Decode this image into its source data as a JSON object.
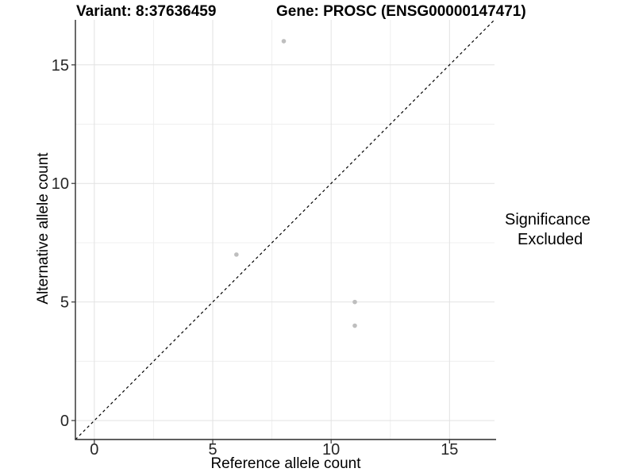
{
  "figure": {
    "title_left": "Variant: 8:37636459",
    "title_right": "Gene: PROSC (ENSG00000147471)",
    "background": "#ffffff"
  },
  "chart_data": {
    "type": "scatter",
    "title": "Variant: 8:37636459 — Gene: PROSC (ENSG00000147471)",
    "xlabel": "Reference allele count",
    "ylabel": "Alternative allele count",
    "xlim": [
      -0.8,
      16.9
    ],
    "ylim": [
      -0.8,
      16.9
    ],
    "x_ticks": [
      0,
      5,
      10,
      15
    ],
    "y_ticks": [
      0,
      5,
      10,
      15
    ],
    "minor_ticks": [
      2.5,
      7.5,
      12.5
    ],
    "grid": true,
    "series": [
      {
        "name": "Excluded",
        "color": "#bebebe",
        "points": [
          {
            "x": 8,
            "y": 16
          },
          {
            "x": 6,
            "y": 7
          },
          {
            "x": 11,
            "y": 5
          },
          {
            "x": 11,
            "y": 4
          }
        ]
      }
    ],
    "reference_line": {
      "type": "identity",
      "slope": 1,
      "intercept": 0,
      "style": "dashed",
      "color": "#000000"
    },
    "legend": {
      "title": "Significance",
      "position": "right",
      "items": [
        {
          "label": "Excluded",
          "color": "#bebebe"
        }
      ]
    }
  },
  "colors": {
    "grid_major": "#e2e2e2",
    "grid_minor": "#efefef",
    "axis_line": "#2a2a2a",
    "tick_mark": "#333333",
    "tick_text": "#262626",
    "point": "#bebebe"
  }
}
